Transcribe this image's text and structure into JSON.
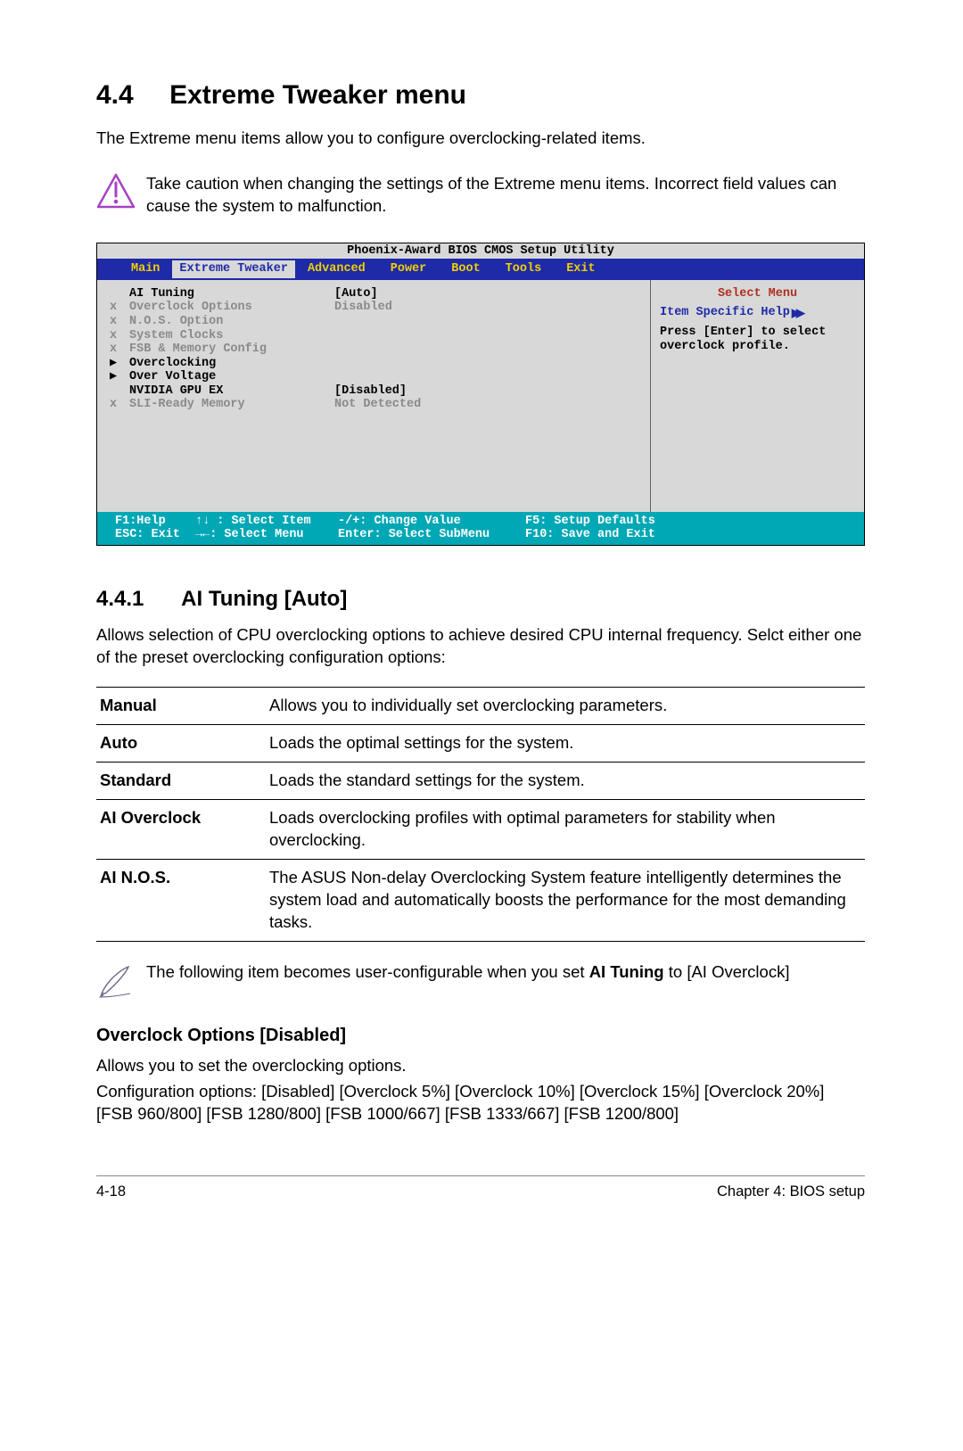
{
  "section": {
    "number": "4.4",
    "title": "Extreme Tweaker menu"
  },
  "intro": "The Extreme menu items allow you to configure overclocking-related items.",
  "warning": "Take caution when changing the settings of the Extreme menu items. Incorrect field values can cause the system to malfunction.",
  "bios": {
    "title": "Phoenix-Award BIOS CMOS Setup Utility",
    "tabs": [
      "Main",
      "Extreme Tweaker",
      "Advanced",
      "Power",
      "Boot",
      "Tools",
      "Exit"
    ],
    "active_tab_index": 1,
    "colors": {
      "tab_bg": "#1e2aa8",
      "tab_fg": "#f0d000",
      "body_bg": "#d8d8d8",
      "dim": "#8a8a8a",
      "side_title": "#b03020",
      "side_help": "#1e2aa8",
      "footer_bg": "#00a7b5",
      "footer_fg": "#ffffff"
    },
    "items": [
      {
        "marker": "",
        "label": "AI Tuning",
        "value": "[Auto]",
        "dim": false
      },
      {
        "marker": "x",
        "label": "Overclock Options",
        "value": "Disabled",
        "dim": true
      },
      {
        "marker": "x",
        "label": "N.O.S. Option",
        "value": "",
        "dim": true
      },
      {
        "marker": "x",
        "label": "System Clocks",
        "value": "",
        "dim": true
      },
      {
        "marker": "x",
        "label": "FSB & Memory Config",
        "value": "",
        "dim": true
      },
      {
        "marker": "▶",
        "label": "Overclocking",
        "value": "",
        "dim": false
      },
      {
        "marker": "▶",
        "label": "Over Voltage",
        "value": "",
        "dim": false
      },
      {
        "marker": "",
        "label": "NVIDIA GPU EX",
        "value": "[Disabled]",
        "dim": false
      },
      {
        "marker": "",
        "label": " ",
        "value": "",
        "dim": false
      },
      {
        "marker": "x",
        "label": "SLI-Ready Memory",
        "value": "Not Detected",
        "dim": true
      }
    ],
    "side": {
      "title": "Select Menu",
      "help_label": "Item Specific Help",
      "text": "Press [Enter] to select overclock profile."
    },
    "footer": {
      "r1c1": "F1:Help",
      "r1c2": "↑↓ : Select Item",
      "r1c3": "-/+: Change Value",
      "r1c4": "F5: Setup Defaults",
      "r2c1": "ESC: Exit",
      "r2c2": "→←: Select Menu",
      "r2c3": "Enter: Select SubMenu",
      "r2c4": "F10: Save and Exit"
    }
  },
  "sub441": {
    "number": "4.4.1",
    "title": "AI Tuning [Auto]",
    "desc": "Allows selection of CPU overclocking options to achieve desired CPU internal frequency. Selct either one of the preset overclocking configuration options:",
    "rows": [
      {
        "key": "Manual",
        "val": "Allows you to individually set overclocking parameters."
      },
      {
        "key": "Auto",
        "val": "Loads the optimal settings for the system."
      },
      {
        "key": "Standard",
        "val": "Loads the standard settings for the system."
      },
      {
        "key": "AI Overclock",
        "val": "Loads overclocking profiles with optimal parameters for stability when overclocking."
      },
      {
        "key": "AI N.O.S.",
        "val": "The ASUS Non-delay Overclocking System feature intelligently determines the system load and automatically boosts the performance for the most demanding tasks."
      }
    ]
  },
  "note": {
    "line1": "The following item becomes user-configurable when you set ",
    "bold": "AI Tuning",
    "line2": " to [AI Overclock]"
  },
  "overclock": {
    "title": "Overclock Options [Disabled]",
    "desc": "Allows you to set the overclocking options.",
    "config": "Configuration options: [Disabled] [Overclock 5%] [Overclock 10%] [Overclock 15%] [Overclock 20%] [FSB 960/800] [FSB 1280/800] [FSB 1000/667] [FSB 1333/667] [FSB 1200/800]"
  },
  "footer": {
    "page": "4-18",
    "chapter": "Chapter 4: BIOS setup"
  }
}
